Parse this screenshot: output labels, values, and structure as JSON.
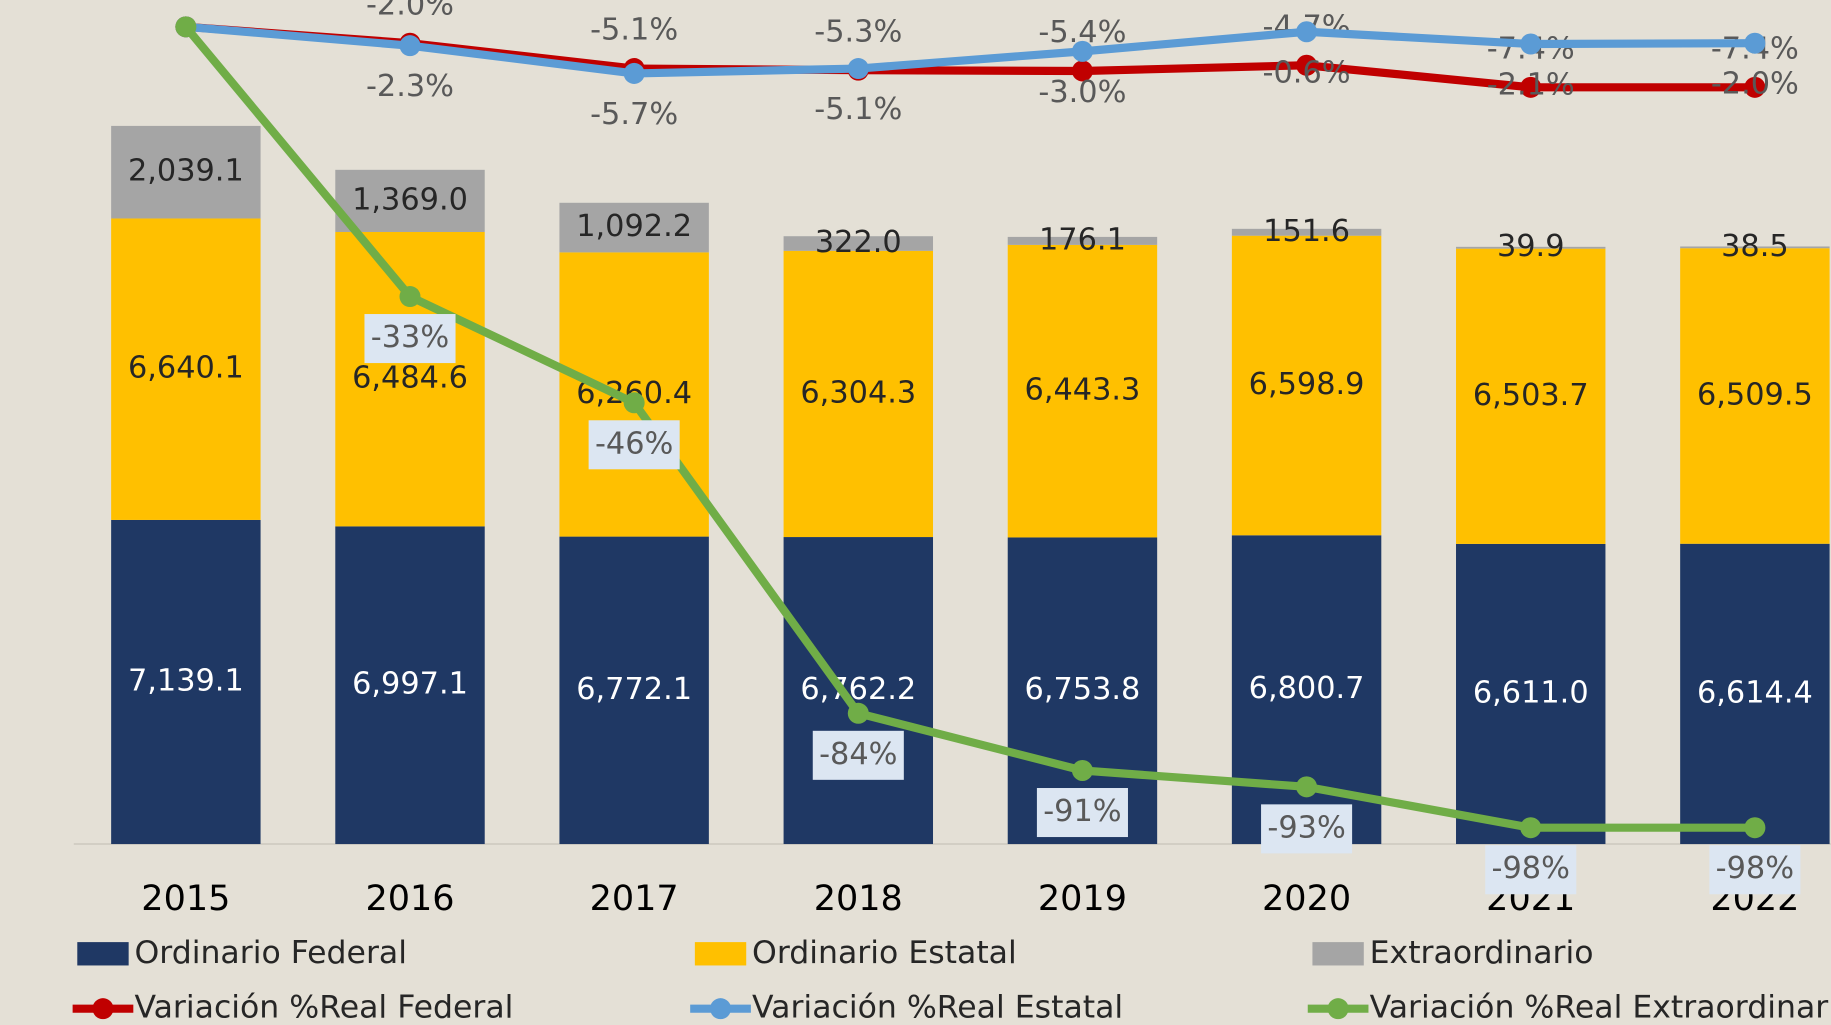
{
  "chart_data": {
    "type": "bar",
    "stacked": true,
    "categories": [
      "2015",
      "2016",
      "2017",
      "2018",
      "2019",
      "2020",
      "2021",
      "2022"
    ],
    "ylim": [
      0,
      18000
    ],
    "y2lim": [
      -100,
      0
    ],
    "series": [
      {
        "name": "Ordinario Federal",
        "type": "bar",
        "color": "#1f3864",
        "values": [
          7139.1,
          6997.1,
          6772.1,
          6762.2,
          6753.8,
          6800.7,
          6611.0,
          6614.4
        ],
        "value_labels": [
          "7,139.1",
          "6,997.1",
          "6,772.1",
          "6,762.2",
          "6,753.8",
          "6,800.7",
          "6,611.0",
          "6,614.4"
        ]
      },
      {
        "name": "Ordinario Estatal",
        "type": "bar",
        "color": "#ffc000",
        "values": [
          6640.1,
          6484.6,
          6260.4,
          6304.3,
          6443.3,
          6598.9,
          6503.7,
          6509.5
        ],
        "value_labels": [
          "6,640.1",
          "6,484.6",
          "6,260.4",
          "6,304.3",
          "6,443.3",
          "6,598.9",
          "6,503.7",
          "6,509.5"
        ]
      },
      {
        "name": "Extraordinario",
        "type": "bar",
        "color": "#a5a5a5",
        "values": [
          2039.1,
          1369.0,
          1092.2,
          322.0,
          176.1,
          151.6,
          39.9,
          38.5
        ],
        "value_labels": [
          "2,039.1",
          "1,369.0",
          "1,092.2",
          "322.0",
          "176.1",
          "151.6",
          "39.9",
          "38.5"
        ]
      },
      {
        "name": "Variación %Real Federal",
        "type": "line",
        "axis": "y2",
        "color": "#c00000",
        "values": [
          0,
          -2.0,
          -5.1,
          -5.3,
          -5.4,
          -4.7,
          -7.4,
          -7.4
        ],
        "value_labels": [
          null,
          "-2.0%",
          "-5.1%",
          "-5.3%",
          "-5.4%",
          "-4.7%",
          "-7.4%",
          "-7.4%"
        ]
      },
      {
        "name": "Variación %Real Estatal",
        "type": "line",
        "axis": "y2",
        "color": "#5b9bd5",
        "values": [
          0,
          -2.3,
          -5.7,
          -5.1,
          -3.0,
          -0.6,
          -2.1,
          -2.0
        ],
        "value_labels": [
          null,
          "-2.3%",
          "-5.7%",
          "-5.1%",
          "-3.0%",
          "-0.6%",
          "-2.1%",
          "-2.0%"
        ]
      },
      {
        "name": "Variación %Real Extraordinario",
        "type": "line",
        "axis": "y2",
        "color": "#70ad47",
        "values": [
          0,
          -33,
          -46,
          -84,
          -91,
          -93,
          -98,
          -98
        ],
        "value_labels": [
          null,
          "-33%",
          "-46%",
          "-84%",
          "-91%",
          "-93%",
          "-98%",
          "-98%"
        ]
      }
    ]
  }
}
